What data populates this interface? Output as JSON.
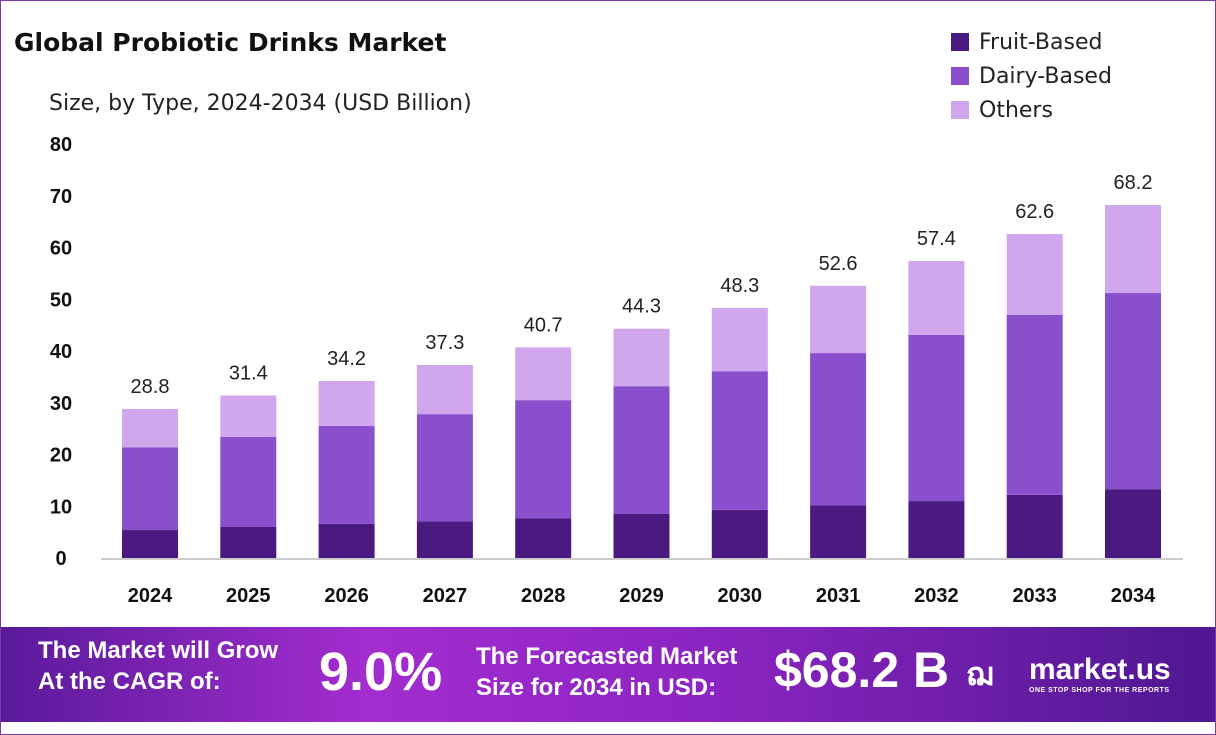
{
  "chart_data": {
    "type": "bar",
    "stacked": true,
    "title": "Global Probiotic Drinks Market",
    "subtitle": "Size, by Type, 2024-2034 (USD Billion)",
    "xlabel": "",
    "ylabel": "",
    "ylim": [
      0,
      80
    ],
    "yticks": [
      0,
      10,
      20,
      30,
      40,
      50,
      60,
      70,
      80
    ],
    "grid": false,
    "legend_position": "top-right",
    "categories": [
      "2024",
      "2025",
      "2026",
      "2027",
      "2028",
      "2029",
      "2030",
      "2031",
      "2032",
      "2033",
      "2034"
    ],
    "series": [
      {
        "name": "Fruit-Based",
        "color": "#4a1a80",
        "values": [
          5.4,
          6.0,
          6.6,
          7.1,
          7.7,
          8.5,
          9.3,
          10.2,
          11.0,
          12.2,
          13.3
        ]
      },
      {
        "name": "Dairy-Based",
        "color": "#8a4fcc",
        "values": [
          16.0,
          17.4,
          18.9,
          20.7,
          22.8,
          24.7,
          26.8,
          29.4,
          32.1,
          34.8,
          37.9
        ]
      },
      {
        "name": "Others",
        "color": "#d0a6ec",
        "values": [
          7.4,
          8.0,
          8.7,
          9.5,
          10.2,
          11.1,
          12.2,
          13.0,
          14.3,
          15.6,
          17.0
        ]
      }
    ],
    "totals": [
      "28.8",
      "31.4",
      "34.2",
      "37.3",
      "40.7",
      "44.3",
      "48.3",
      "52.6",
      "57.4",
      "62.6",
      "68.2"
    ]
  },
  "banner": {
    "cagr_line1": "The Market will Grow",
    "cagr_line2": "At the CAGR of:",
    "cagr_value": "9.0%",
    "forecast_line1": "The Forecasted Market",
    "forecast_line2": "Size for 2034 in USD:",
    "forecast_value": "$68.2 B",
    "logo_text": "market.us",
    "logo_tagline": "ONE STOP SHOP FOR THE REPORTS"
  }
}
